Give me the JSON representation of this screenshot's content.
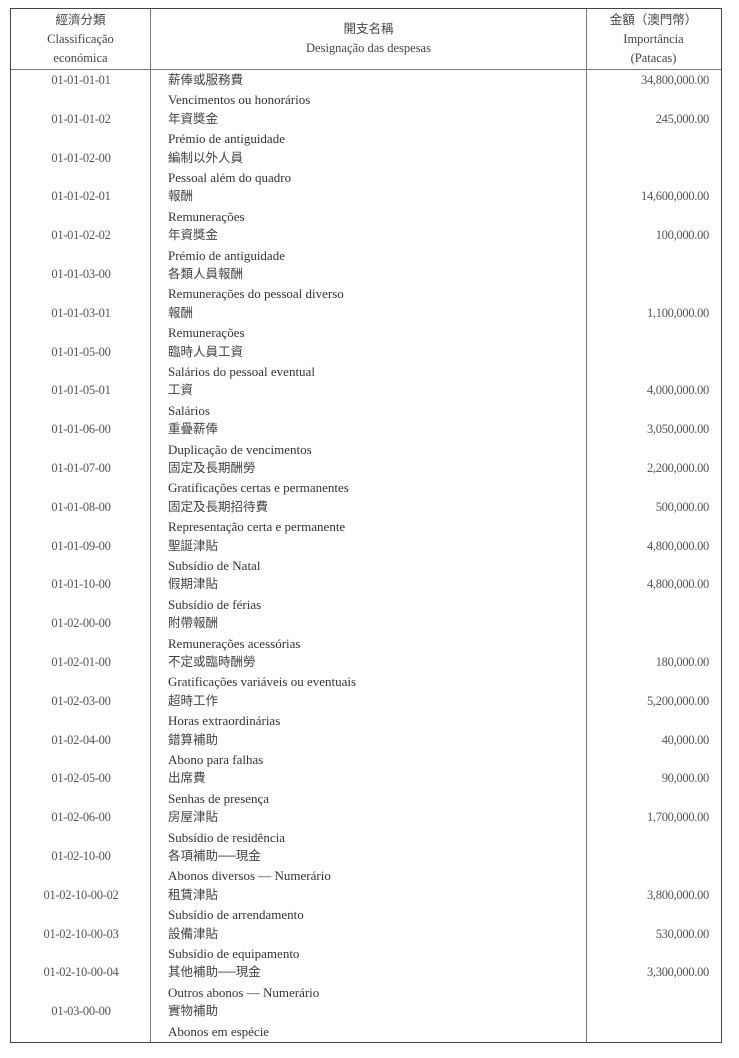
{
  "header": {
    "col1": {
      "zh": "經濟分類",
      "pt1": "Classificação",
      "pt2": "económica"
    },
    "col2": {
      "zh": "開支名稱",
      "pt": "Designação das despesas"
    },
    "col3": {
      "zh": "金額（澳門幣）",
      "pt1": "Importância",
      "pt2": "(Patacas)"
    }
  },
  "rows": [
    {
      "code": "01-01-01-01",
      "zh": "薪俸或服務費",
      "pt": "Vencimentos ou honorários",
      "amount": "34,800,000.00"
    },
    {
      "code": "01-01-01-02",
      "zh": "年資獎金",
      "pt": "Prémio de antiguidade",
      "amount": "245,000.00"
    },
    {
      "code": "01-01-02-00",
      "zh": "編制以外人員",
      "pt": "Pessoal além do quadro",
      "amount": ""
    },
    {
      "code": "01-01-02-01",
      "zh": "報酬",
      "pt": "Remunerações",
      "amount": "14,600,000.00"
    },
    {
      "code": "01-01-02-02",
      "zh": "年資獎金",
      "pt": "Prémio de antiguidade",
      "amount": "100,000.00"
    },
    {
      "code": "01-01-03-00",
      "zh": "各類人員報酬",
      "pt": "Remunerações do pessoal diverso",
      "amount": ""
    },
    {
      "code": "01-01-03-01",
      "zh": "報酬",
      "pt": "Remunerações",
      "amount": "1,100,000.00"
    },
    {
      "code": "01-01-05-00",
      "zh": "臨時人員工資",
      "pt": "Salários do pessoal eventual",
      "amount": ""
    },
    {
      "code": "01-01-05-01",
      "zh": "工資",
      "pt": "Salários",
      "amount": "4,000,000.00"
    },
    {
      "code": "01-01-06-00",
      "zh": "重疊薪俸",
      "pt": "Duplicação de vencimentos",
      "amount": "3,050,000.00"
    },
    {
      "code": "01-01-07-00",
      "zh": "固定及長期酬勞",
      "pt": "Gratificações certas e permanentes",
      "amount": "2,200,000.00"
    },
    {
      "code": "01-01-08-00",
      "zh": "固定及長期招待費",
      "pt": "Representação certa e permanente",
      "amount": "500,000.00"
    },
    {
      "code": "01-01-09-00",
      "zh": "聖誕津貼",
      "pt": "Subsídio de Natal",
      "amount": "4,800,000.00"
    },
    {
      "code": "01-01-10-00",
      "zh": "假期津貼",
      "pt": "Subsídio de férias",
      "amount": "4,800,000.00"
    },
    {
      "code": "01-02-00-00",
      "zh": "附帶報酬",
      "pt": "Remunerações acessórias",
      "amount": ""
    },
    {
      "code": "01-02-01-00",
      "zh": "不定或臨時酬勞",
      "pt": "Gratificações variáveis ou eventuais",
      "amount": "180,000.00"
    },
    {
      "code": "01-02-03-00",
      "zh": "超時工作",
      "pt": "Horas extraordinárias",
      "amount": "5,200,000.00"
    },
    {
      "code": "01-02-04-00",
      "zh": "錯算補助",
      "pt": "Abono para falhas",
      "amount": "40,000.00"
    },
    {
      "code": "01-02-05-00",
      "zh": "出席費",
      "pt": "Senhas de presença",
      "amount": "90,000.00"
    },
    {
      "code": "01-02-06-00",
      "zh": "房屋津貼",
      "pt": "Subsídio de residência",
      "amount": "1,700,000.00"
    },
    {
      "code": "01-02-10-00",
      "zh": "各項補助──現金",
      "pt": "Abonos diversos — Numerário",
      "amount": ""
    },
    {
      "code": "01-02-10-00-02",
      "zh": "租賃津貼",
      "pt": "Subsídio de arrendamento",
      "amount": "3,800,000.00"
    },
    {
      "code": "01-02-10-00-03",
      "zh": "設備津貼",
      "pt": "Subsídio de equipamento",
      "amount": "530,000.00"
    },
    {
      "code": "01-02-10-00-04",
      "zh": "其他補助──現金",
      "pt": "Outros abonos — Numerário",
      "amount": "3,300,000.00"
    },
    {
      "code": "01-03-00-00",
      "zh": "實物補助",
      "pt": "Abonos em espécie",
      "amount": ""
    }
  ]
}
